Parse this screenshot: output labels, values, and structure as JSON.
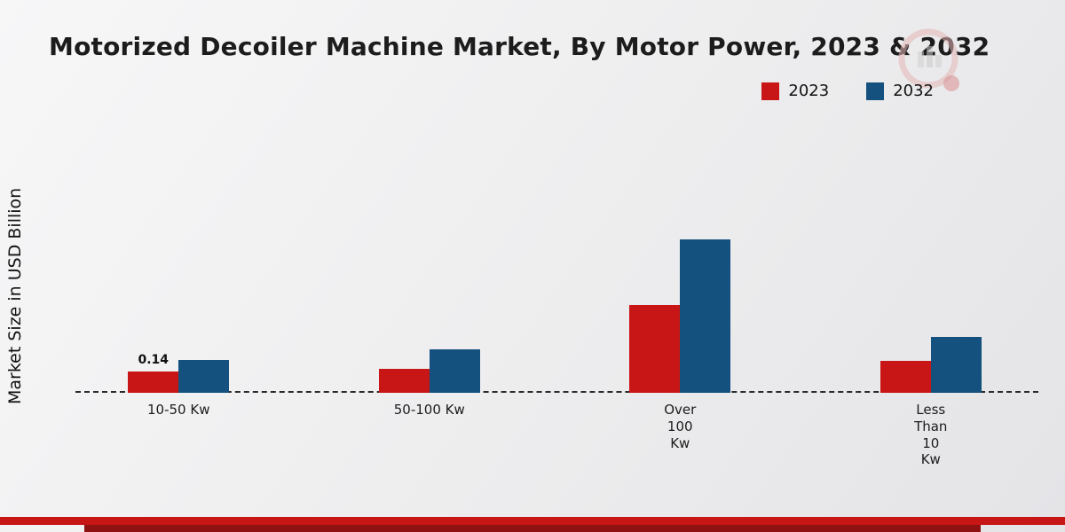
{
  "title": "Motorized Decoiler Machine Market, By Motor Power, 2023 & 2032",
  "ylabel": "Market Size in USD Billion",
  "legend": [
    {
      "label": "2023",
      "color": "#c81515"
    },
    {
      "label": "2032",
      "color": "#14517f"
    }
  ],
  "footer": {
    "stripe_color": "#c81515",
    "bar_color": "#8f1212"
  },
  "icons": {
    "watermark": "company-logo-watermark"
  },
  "chart_data": {
    "type": "bar",
    "title": "Motorized Decoiler Machine Market, By Motor Power, 2023 & 2032",
    "xlabel": "",
    "ylabel": "Market Size in USD Billion",
    "ylim": [
      0,
      1.1
    ],
    "grid": false,
    "legend_position": "top-right",
    "baseline_style": "dashed",
    "categories": [
      "10-50 Kw",
      "50-100 Kw",
      "Over 100 Kw",
      "Less Than 10 Kw"
    ],
    "category_label_lines": [
      [
        "10-50 Kw"
      ],
      [
        "50-100 Kw"
      ],
      [
        "Over",
        "100",
        "Kw"
      ],
      [
        "Less",
        "Than",
        "10",
        "Kw"
      ]
    ],
    "series": [
      {
        "name": "2023",
        "color": "#c81515",
        "values": [
          0.14,
          0.16,
          0.58,
          0.21
        ]
      },
      {
        "name": "2032",
        "color": "#14517f",
        "values": [
          0.22,
          0.29,
          1.02,
          0.37
        ]
      }
    ],
    "annotations": [
      {
        "series": "2023",
        "category": "10-50 Kw",
        "text": "0.14"
      }
    ]
  }
}
